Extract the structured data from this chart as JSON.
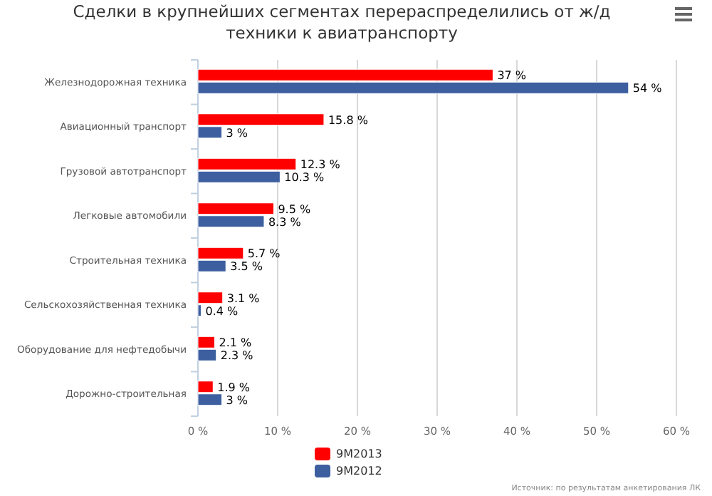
{
  "chart_data": {
    "type": "bar",
    "orientation": "horizontal",
    "title": "Сделки в крупнейших сегментах перераспределились от ж/д техники к авиатранспорту",
    "categories": [
      "Железнодорожная техника",
      "Авиационный транспорт",
      "Грузовой автотранспорт",
      "Легковые автомобили",
      "Строительная техника",
      "Сельскохозяйственная техника",
      "Оборудование для нефтедобычи",
      "Дорожно-строительная"
    ],
    "series": [
      {
        "name": "9M2013",
        "color": "#ff0000",
        "values": [
          37,
          15.8,
          12.3,
          9.5,
          5.7,
          3.1,
          2.1,
          1.9
        ],
        "value_labels": [
          "37 %",
          "15.8 %",
          "12.3 %",
          "9.5 %",
          "5.7 %",
          "3.1 %",
          "2.1 %",
          "1.9 %"
        ]
      },
      {
        "name": "9M2012",
        "color": "#3d5fa0",
        "values": [
          54,
          3,
          10.3,
          8.3,
          3.5,
          0.4,
          2.3,
          3
        ],
        "value_labels": [
          "54 %",
          "3 %",
          "10.3 %",
          "8.3 %",
          "3.5 %",
          "0.4 %",
          "2.3 %",
          "3 %"
        ]
      }
    ],
    "xlim": [
      0,
      60
    ],
    "xticks": [
      {
        "value": 0,
        "label": "0 %"
      },
      {
        "value": 10,
        "label": "10 %"
      },
      {
        "value": 20,
        "label": "20 %"
      },
      {
        "value": 30,
        "label": "30 %"
      },
      {
        "value": 40,
        "label": "40 %"
      },
      {
        "value": 50,
        "label": "50 %"
      },
      {
        "value": 60,
        "label": "60 %"
      }
    ],
    "grid": "x",
    "legend": "bottom",
    "annotations": [
      "Источник: по результатам анкетирования ЛК"
    ]
  }
}
